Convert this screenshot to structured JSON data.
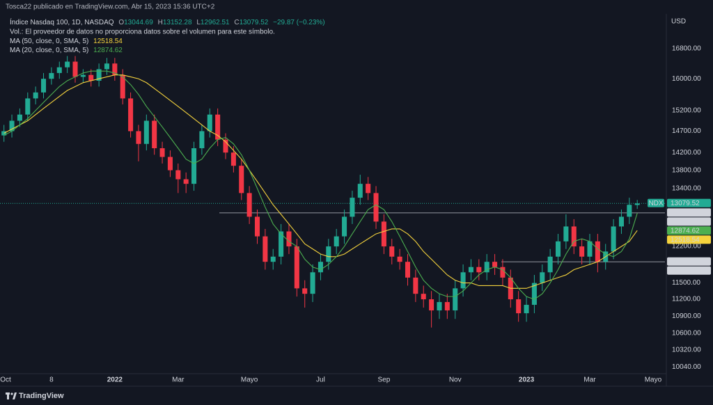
{
  "header": {
    "published": "Tosca22 publicado en TradingView.com, Abr 15, 2023 15:36 UTC+2",
    "symbol": "Índice Nasdaq 100, 1D, NASDAQ",
    "ohlc_labels": [
      "O",
      "H",
      "L",
      "C"
    ],
    "change": "−29.87 (−0.23%)",
    "volume_note": "Vol.: El proveedor de datos no proporciona datos sobre el volumen para este símbolo.",
    "brand": "TradingView"
  },
  "chart_data": {
    "type": "candlestick",
    "categories": [
      "Oct",
      null,
      null,
      null,
      null,
      null,
      "8",
      null,
      null,
      null,
      null,
      null,
      null,
      null,
      "2022",
      null,
      null,
      null,
      null,
      null,
      null,
      null,
      "Mar",
      null,
      null,
      null,
      null,
      null,
      null,
      null,
      null,
      "Mayo",
      null,
      null,
      null,
      null,
      null,
      null,
      null,
      null,
      "Jul",
      null,
      null,
      null,
      null,
      null,
      null,
      null,
      "Sep",
      null,
      null,
      null,
      null,
      null,
      null,
      null,
      null,
      "Nov",
      null,
      null,
      null,
      null,
      null,
      null,
      null,
      null,
      "2023",
      null,
      null,
      null,
      null,
      null,
      null,
      null,
      "Mar",
      null,
      null,
      null,
      null,
      null,
      null,
      null,
      "Mayo",
      null
    ],
    "open": [
      14600,
      14700,
      14950,
      15100,
      15500,
      15650,
      16000,
      16150,
      16300,
      16450,
      16050,
      16100,
      15950,
      16250,
      16400,
      16100,
      15500,
      14700,
      14400,
      14950,
      14300,
      14100,
      13800,
      13600,
      13500,
      14300,
      14700,
      15100,
      14500,
      14200,
      13900,
      13300,
      12800,
      12400,
      11900,
      12000,
      12500,
      12200,
      11400,
      11300,
      11700,
      11900,
      12200,
      12400,
      12800,
      13200,
      13500,
      13300,
      12700,
      12200,
      12000,
      11900,
      11600,
      11300,
      11200,
      11000,
      11150,
      11000,
      11400,
      11700,
      11800,
      11700,
      11900,
      11800,
      11600,
      11200,
      10950,
      11100,
      11500,
      11700,
      12000,
      12300,
      12600,
      12200,
      12000,
      12300,
      11900,
      12100,
      12600,
      12800,
      13044.69,
      null,
      null,
      null
    ],
    "high": [
      14850,
      15100,
      15250,
      15650,
      15800,
      16150,
      16300,
      16450,
      16600,
      16600,
      16250,
      16250,
      16400,
      16550,
      16550,
      16250,
      15650,
      14850,
      15100,
      15100,
      14450,
      14250,
      13950,
      13750,
      14450,
      14850,
      15250,
      15250,
      14650,
      14350,
      14050,
      13450,
      12950,
      12550,
      12150,
      12650,
      12650,
      12350,
      11550,
      11850,
      12050,
      12350,
      12550,
      12950,
      13350,
      13700,
      13650,
      13450,
      12850,
      12350,
      12150,
      12050,
      11750,
      11450,
      11350,
      11300,
      11300,
      11550,
      11850,
      11950,
      11950,
      12050,
      12050,
      11950,
      11750,
      11350,
      11250,
      11650,
      11850,
      12150,
      12450,
      12850,
      12750,
      12350,
      12450,
      12450,
      12250,
      12750,
      12950,
      13200,
      13152.28,
      null,
      null,
      null
    ],
    "low": [
      14450,
      14550,
      14800,
      14950,
      15350,
      15500,
      15850,
      16000,
      16150,
      15900,
      15900,
      15800,
      15800,
      16100,
      15950,
      15350,
      14550,
      14000,
      14250,
      14150,
      13950,
      13650,
      13300,
      13300,
      13350,
      14150,
      14550,
      14350,
      14050,
      13750,
      13150,
      12650,
      12250,
      11750,
      11750,
      11850,
      12050,
      11250,
      11050,
      11150,
      11550,
      11750,
      12050,
      12250,
      12650,
      13050,
      13150,
      12550,
      12050,
      11850,
      11750,
      11450,
      11150,
      11050,
      10700,
      10850,
      10850,
      10850,
      11250,
      11550,
      11550,
      11550,
      11650,
      11450,
      11050,
      10800,
      10800,
      10950,
      11350,
      11550,
      11850,
      12150,
      12050,
      11850,
      11850,
      11700,
      11750,
      11950,
      12450,
      12650,
      12962.51,
      null,
      null,
      null
    ],
    "close": [
      14700,
      14950,
      15100,
      15500,
      15650,
      16000,
      16150,
      16300,
      16450,
      16050,
      16100,
      15950,
      16250,
      16400,
      16100,
      15500,
      14700,
      14400,
      14950,
      14300,
      14100,
      13800,
      13600,
      13500,
      14300,
      14700,
      15100,
      14500,
      14200,
      13900,
      13300,
      12800,
      12400,
      11900,
      12000,
      12500,
      12200,
      11400,
      11300,
      11700,
      11900,
      12200,
      12400,
      12800,
      13200,
      13500,
      13300,
      12700,
      12200,
      12000,
      11900,
      11600,
      11300,
      11200,
      11000,
      11150,
      11000,
      11400,
      11700,
      11800,
      11700,
      11900,
      11800,
      11600,
      11200,
      10950,
      11100,
      11500,
      11700,
      12000,
      12300,
      12600,
      12200,
      12000,
      12300,
      11900,
      12100,
      12600,
      12800,
      13050,
      13079.52,
      null,
      null,
      null
    ],
    "up_color": "#22ab94",
    "down_color": "#f23645",
    "series": [
      {
        "name": "MA (50, close, 0, SMA, 5)",
        "color": "#f5d33d",
        "values": [
          14650,
          14750,
          14850,
          14950,
          15100,
          15250,
          15400,
          15550,
          15700,
          15800,
          15900,
          15950,
          16000,
          16050,
          16100,
          16100,
          16050,
          16000,
          15900,
          15750,
          15600,
          15450,
          15300,
          15150,
          15000,
          14850,
          14700,
          14600,
          14450,
          14250,
          14050,
          13800,
          13550,
          13300,
          13050,
          12850,
          12650,
          12450,
          12250,
          12150,
          12050,
          12000,
          12000,
          12050,
          12150,
          12250,
          12350,
          12450,
          12500,
          12550,
          12550,
          12450,
          12300,
          12100,
          11950,
          11800,
          11650,
          11550,
          11500,
          11500,
          11450,
          11450,
          11450,
          11450,
          11400,
          11400,
          11400,
          11450,
          11500,
          11550,
          11600,
          11650,
          11750,
          11800,
          11850,
          11900,
          12000,
          12100,
          12200,
          12300,
          12518.54,
          null,
          null,
          null
        ]
      },
      {
        "name": "MA (20, close, 0, SMA, 5)",
        "color": "#4caf50",
        "values": [
          14600,
          14700,
          14850,
          15000,
          15200,
          15400,
          15600,
          15800,
          15950,
          16050,
          16150,
          16200,
          16200,
          16200,
          16150,
          16050,
          15850,
          15600,
          15300,
          15050,
          14800,
          14550,
          14300,
          14050,
          13950,
          14050,
          14300,
          14500,
          14550,
          14400,
          14150,
          13800,
          13400,
          13000,
          12650,
          12450,
          12300,
          12200,
          11950,
          11800,
          11750,
          11850,
          12000,
          12200,
          12450,
          12700,
          12950,
          13050,
          12950,
          12700,
          12400,
          12100,
          11800,
          11550,
          11400,
          11300,
          11250,
          11250,
          11350,
          11500,
          11650,
          11750,
          11800,
          11750,
          11600,
          11400,
          11250,
          11200,
          11300,
          11500,
          11750,
          12050,
          12300,
          12350,
          12300,
          12150,
          12050,
          12000,
          12100,
          12350,
          12874.62,
          null,
          null,
          null
        ]
      }
    ],
    "ylim": [
      9930,
      17770
    ],
    "log_scale": true,
    "grid": false,
    "y_unit": "USD",
    "symbol_tag": "NDX",
    "last_price_line": true,
    "close_label": "13079.52",
    "yticks": [
      {
        "value": 16800,
        "label": "16800.00"
      },
      {
        "value": 16000,
        "label": "16000.00"
      },
      {
        "value": 15200,
        "label": "15200.00"
      },
      {
        "value": 14700,
        "label": "14700.00"
      },
      {
        "value": 14200,
        "label": "14200.00"
      },
      {
        "value": 13800,
        "label": "13800.00"
      },
      {
        "value": 13400,
        "label": "13400.00"
      },
      {
        "value": 12200,
        "label": "12200.00"
      },
      {
        "value": 11500,
        "label": "11500.00"
      },
      {
        "value": 11200,
        "label": "11200.00"
      },
      {
        "value": 10900,
        "label": "10900.00"
      },
      {
        "value": 10600,
        "label": "10600.00"
      },
      {
        "value": 10320,
        "label": "10320.00"
      },
      {
        "value": 10040,
        "label": "10040.00"
      }
    ],
    "horizontal_lines": [
      {
        "value": 12880,
        "label": "12880.00"
      },
      {
        "value": 11900,
        "label": "11900.00"
      }
    ]
  }
}
